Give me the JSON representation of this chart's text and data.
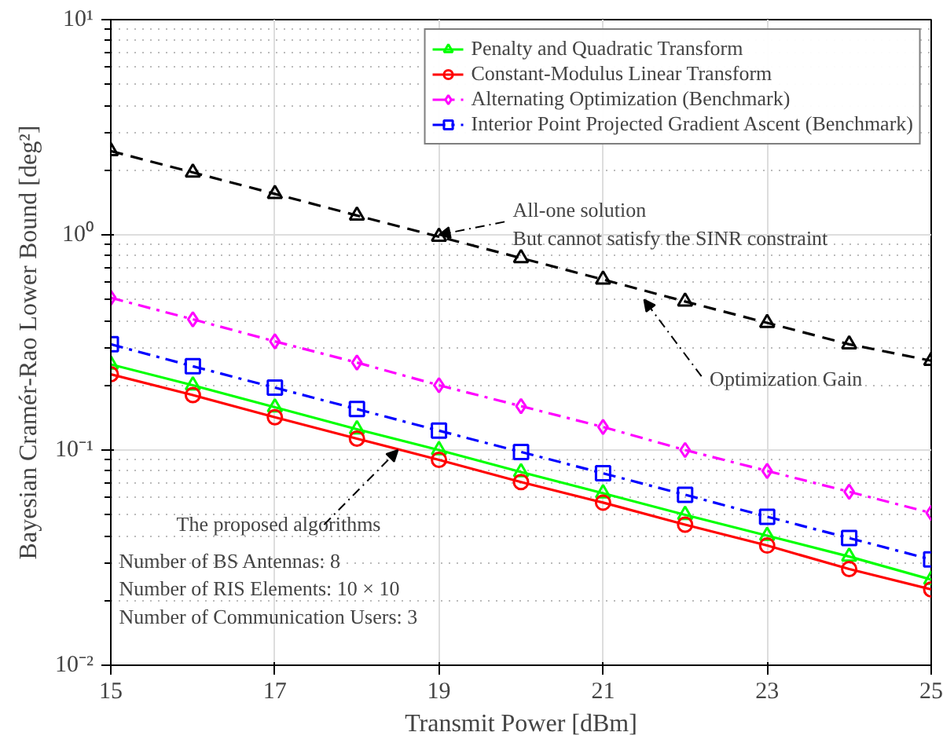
{
  "chart_data": {
    "type": "line",
    "xlabel": "Transmit Power [dBm]",
    "ylabel": "Bayesian Cramér-Rao Lower Bound [deg²]",
    "x": [
      15,
      16,
      17,
      18,
      19,
      20,
      21,
      22,
      23,
      24,
      25
    ],
    "series": [
      {
        "name": "Penalty and Quadratic Transform",
        "color": "#00ff00",
        "marker": "triangle",
        "line_style": "solid",
        "values": [
          0.25,
          0.2,
          0.158,
          0.125,
          0.1,
          0.079,
          0.063,
          0.05,
          0.04,
          0.032,
          0.025
        ]
      },
      {
        "name": "Constant-Modulus Linear Transform",
        "color": "#ff0000",
        "marker": "circle",
        "line_style": "solid",
        "values": [
          0.225,
          0.18,
          0.142,
          0.113,
          0.09,
          0.071,
          0.057,
          0.045,
          0.036,
          0.028,
          0.0225
        ]
      },
      {
        "name": "Alternating Optimization (Benchmark)",
        "color": "#ff00ff",
        "marker": "diamond",
        "line_style": "dashdot",
        "values": [
          0.51,
          0.405,
          0.32,
          0.255,
          0.2,
          0.16,
          0.128,
          0.1,
          0.08,
          0.064,
          0.051
        ]
      },
      {
        "name": "Interior Point Projected Gradient Ascent (Benchmark)",
        "color": "#0000ff",
        "marker": "square",
        "line_style": "dashdot",
        "values": [
          0.31,
          0.245,
          0.195,
          0.155,
          0.123,
          0.098,
          0.078,
          0.062,
          0.049,
          0.039,
          0.031
        ]
      },
      {
        "color": "#000000",
        "marker": "triangle",
        "line_style": "dashed",
        "values": [
          2.45,
          1.95,
          1.55,
          1.23,
          0.98,
          0.78,
          0.62,
          0.49,
          0.39,
          0.31,
          0.26
        ]
      }
    ],
    "xlim": [
      15,
      25
    ],
    "xticks": [
      15,
      17,
      19,
      21,
      23,
      25
    ],
    "ylim": [
      0.01,
      10
    ],
    "yticks": [
      {
        "value": 0.01,
        "label": "10⁻²"
      },
      {
        "value": 0.1,
        "label": "10⁻¹"
      },
      {
        "value": 1,
        "label": "10⁰"
      },
      {
        "value": 10,
        "label": "10¹"
      }
    ],
    "log": "y",
    "grid": true,
    "legend": "top right",
    "annotations": [
      {
        "text": "All-one solution\nBut cannot satisfy the SINR constraint",
        "x": 19,
        "y": 1.0
      },
      "Optimization Gain",
      {
        "text": "The proposed algorithms",
        "x": 18.5,
        "y": 0.1
      },
      "Number of BS Antennas: 8\nNumber of RIS Elements: 10 × 10\nNumber of Communication Users: 3"
    ]
  }
}
